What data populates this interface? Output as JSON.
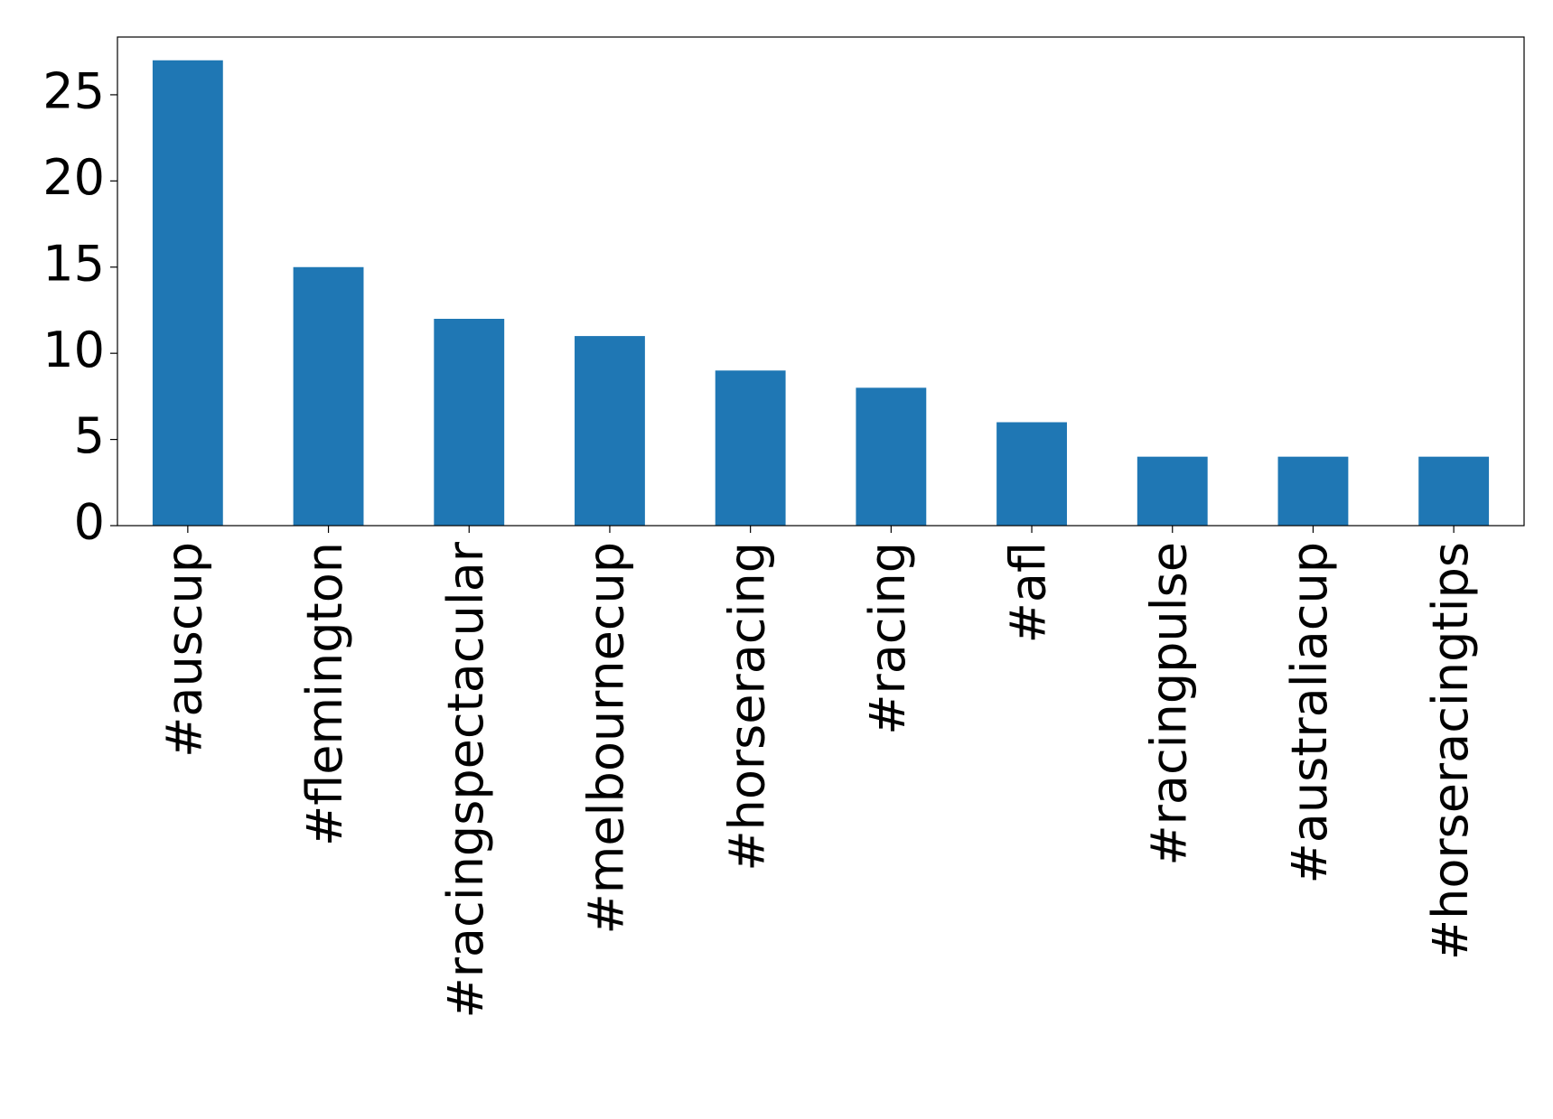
{
  "chart_data": {
    "type": "bar",
    "categories": [
      "#auscup",
      "#flemington",
      "#racingspectacular",
      "#melbournecup",
      "#horseracing",
      "#racing",
      "#afl",
      "#racingpulse",
      "#australiacup",
      "#horseracingtips"
    ],
    "values": [
      27,
      15,
      12,
      11,
      9,
      8,
      6,
      4,
      4,
      4
    ],
    "color": "#1f77b4",
    "ylim": [
      0,
      28.35
    ],
    "yticks": [
      0,
      5,
      10,
      15,
      20,
      25
    ],
    "grid": false
  }
}
